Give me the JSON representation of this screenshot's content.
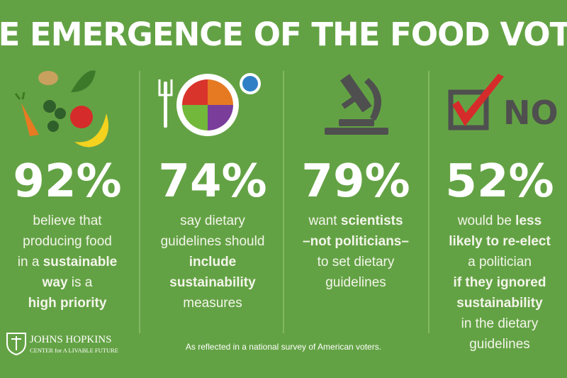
{
  "title": "THE EMERGENCE OF THE FOOD VOTER",
  "columns": [
    {
      "stat": "92%",
      "lines": [
        [
          {
            "text": "believe that"
          }
        ],
        [
          {
            "text": "producing food"
          }
        ],
        [
          {
            "text": "in a "
          },
          {
            "text": "sustainable",
            "bold": true
          }
        ],
        [
          {
            "text": "way",
            "bold": true
          },
          {
            "text": " is a"
          }
        ],
        [
          {
            "text": "high priority",
            "bold": true
          }
        ]
      ]
    },
    {
      "stat": "74%",
      "lines": [
        [
          {
            "text": "say dietary"
          }
        ],
        [
          {
            "text": "guidelines should"
          }
        ],
        [
          {
            "text": "include",
            "bold": true
          }
        ],
        [
          {
            "text": "sustainability",
            "bold": true
          }
        ],
        [
          {
            "text": "measures"
          }
        ]
      ]
    },
    {
      "stat": "79%",
      "lines": [
        [
          {
            "text": "want "
          },
          {
            "text": "scientists",
            "bold": true
          }
        ],
        [
          {
            "text": "–not politicians–",
            "bold": true
          }
        ],
        [
          {
            "text": "to set dietary"
          }
        ],
        [
          {
            "text": "guidelines"
          }
        ]
      ]
    },
    {
      "stat": "52%",
      "lines": [
        [
          {
            "text": "would be "
          },
          {
            "text": "less",
            "bold": true
          }
        ],
        [
          {
            "text": "likely to re-elect",
            "bold": true
          }
        ],
        [
          {
            "text": "a politician"
          }
        ],
        [
          {
            "text": "if they ignored",
            "bold": true
          }
        ],
        [
          {
            "text": "sustainability",
            "bold": true
          }
        ],
        [
          {
            "text": "in the dietary"
          }
        ],
        [
          {
            "text": "guidelines"
          }
        ]
      ]
    }
  ],
  "no_icon_label": "NO",
  "logo": {
    "name": "JOHNS HOPKINS",
    "subtitle": "CENTER for A LIVABLE FUTURE"
  },
  "footnote": "As reflected in a national survey of American voters."
}
